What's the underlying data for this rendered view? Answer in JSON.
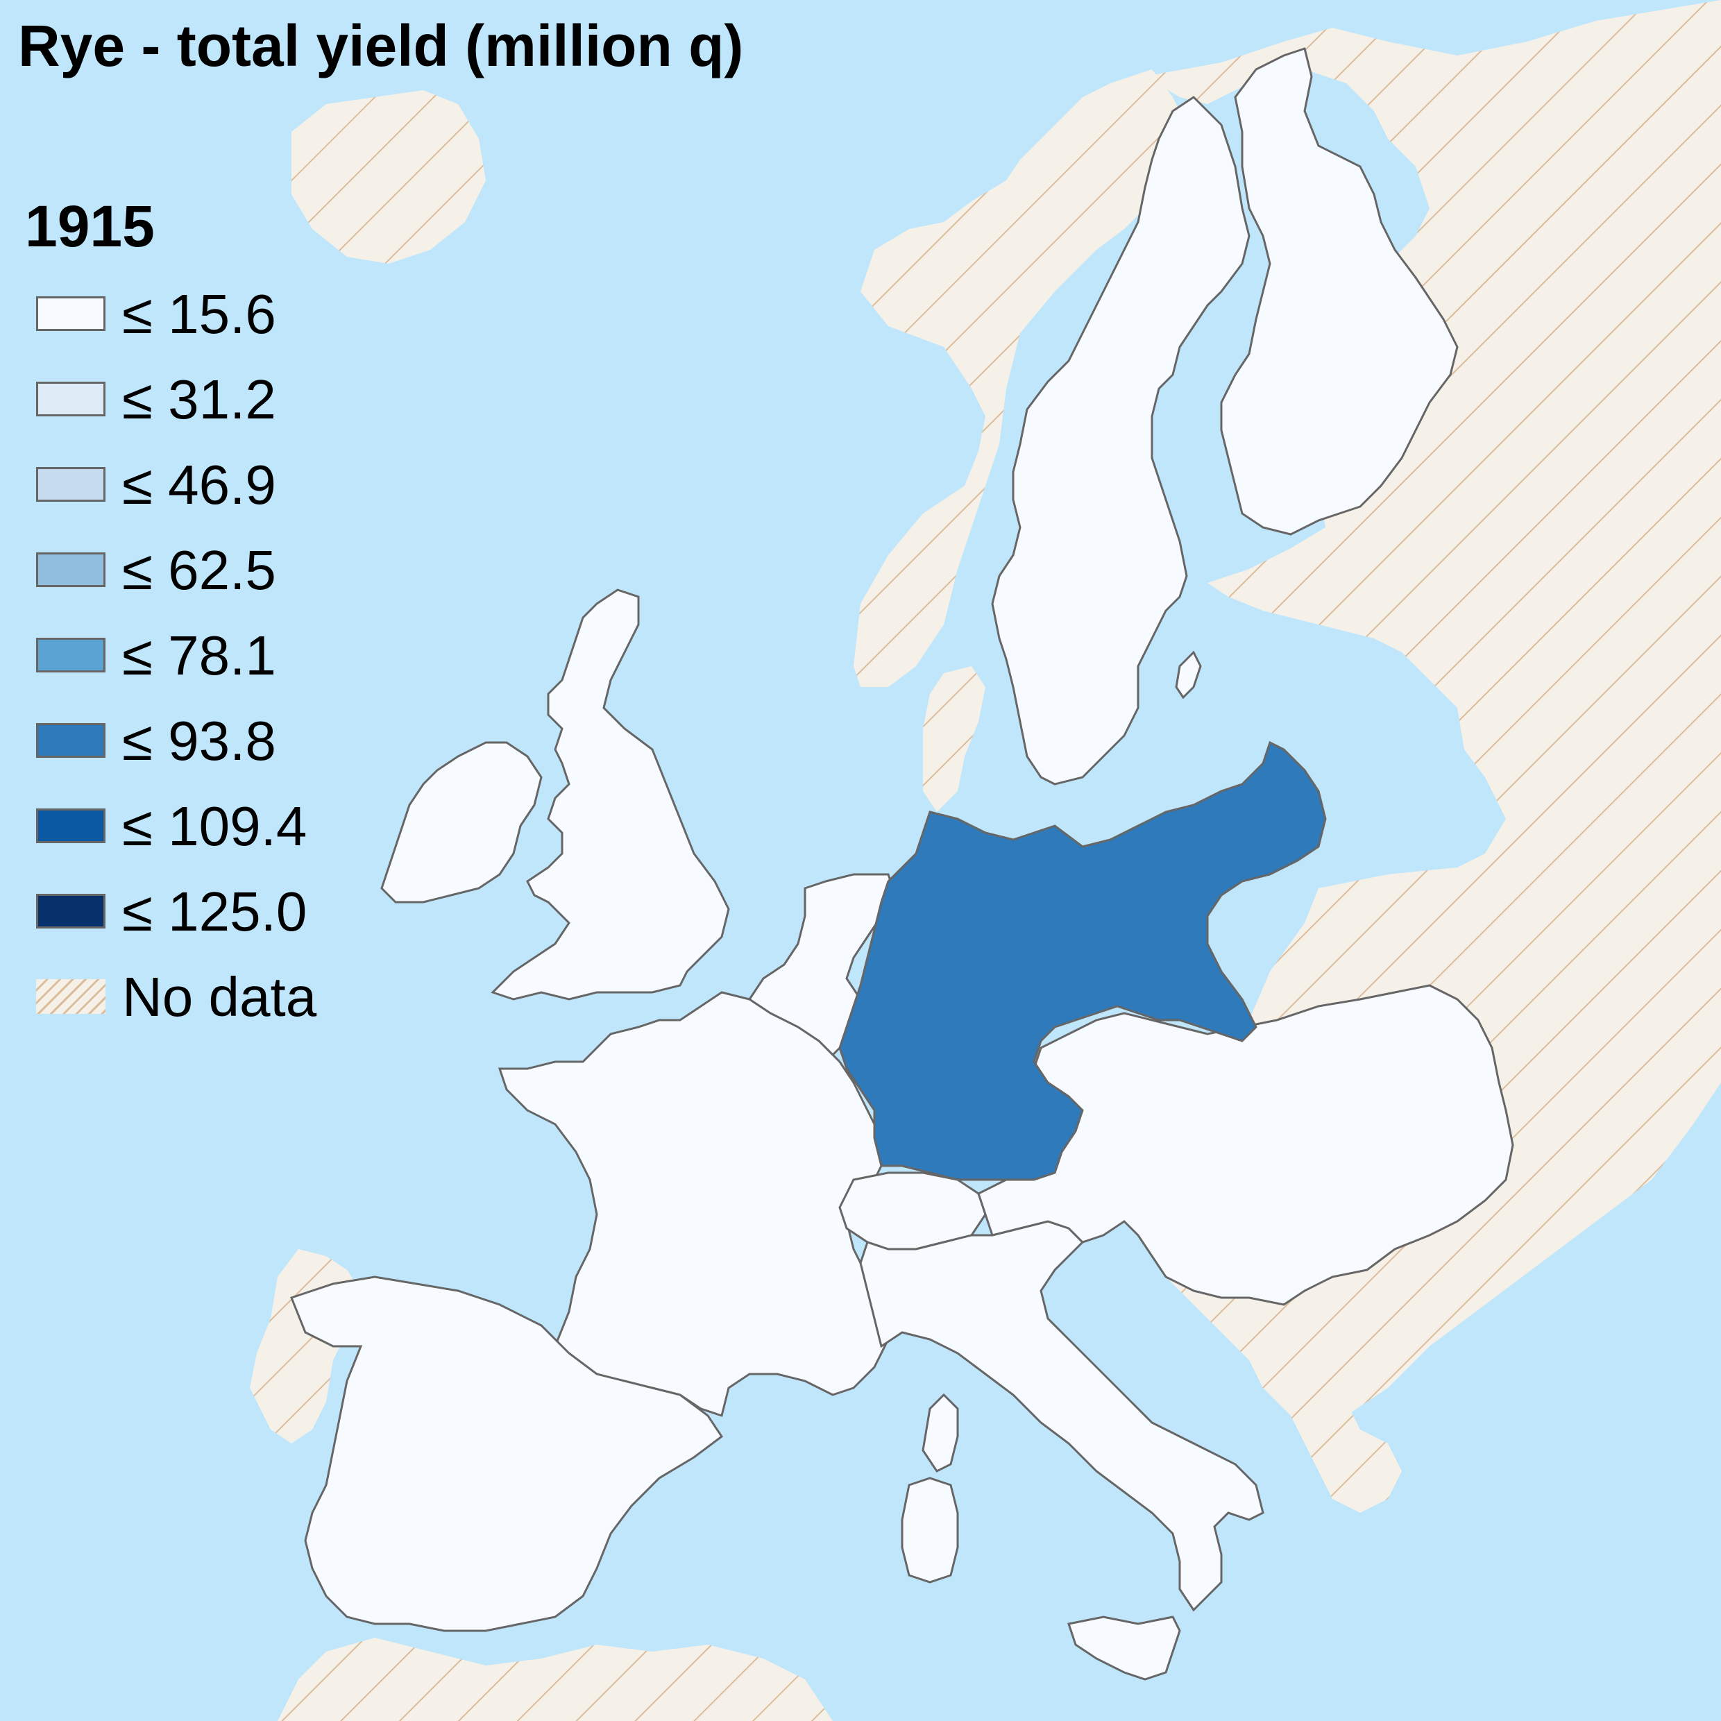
{
  "map": {
    "title": "Rye - total yield (million q)",
    "year": "1915",
    "colors": {
      "sea": "#c0e6fb",
      "land_no_data": "#f6f1e8",
      "hatch": "#dbbd9c",
      "border": "#666666"
    },
    "legend": [
      {
        "label": "≤ 15.6",
        "color": "#f7fbff"
      },
      {
        "label": "≤ 31.2",
        "color": "#deebf7"
      },
      {
        "label": "≤ 46.9",
        "color": "#c6dbef"
      },
      {
        "label": "≤ 62.5",
        "color": "#8fbedf"
      },
      {
        "label": "≤ 78.1",
        "color": "#5ba3d3"
      },
      {
        "label": "≤ 93.8",
        "color": "#2e7aba"
      },
      {
        "label": "≤ 109.4",
        "color": "#0b58a3"
      },
      {
        "label": "≤ 125.0",
        "color": "#08306b"
      },
      {
        "label": "No data",
        "color": "hatched"
      }
    ]
  }
}
